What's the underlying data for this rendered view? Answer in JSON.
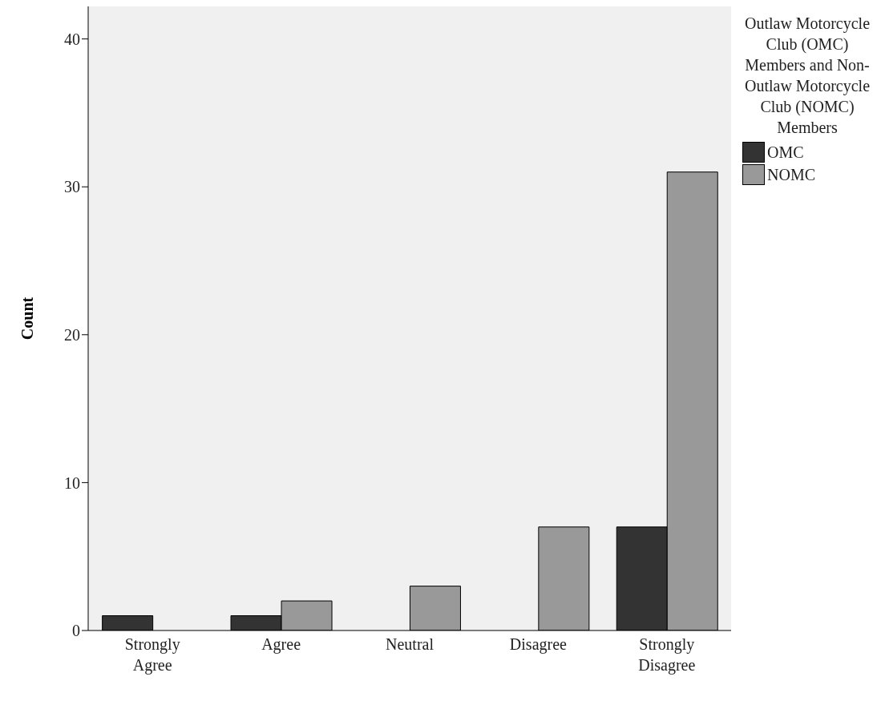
{
  "chart_data": {
    "type": "bar",
    "ylabel": "Count",
    "legend_title": "Outlaw Motorcycle Club (OMC) Members and Non-Outlaw Motorcycle Club (NOMC) Members",
    "legend": "right",
    "categories": [
      "Strongly Agree",
      "Agree",
      "Neutral",
      "Disagree",
      "Strongly Disagree"
    ],
    "series": [
      {
        "name": "OMC",
        "color": "#333333",
        "values": [
          1,
          1,
          0,
          0,
          7
        ]
      },
      {
        "name": "NOMC",
        "color": "#999999",
        "values": [
          0,
          2,
          3,
          7,
          31
        ]
      }
    ],
    "ylim": [
      0,
      42.2
    ],
    "yticks": [
      0,
      10,
      20,
      30,
      40
    ]
  }
}
